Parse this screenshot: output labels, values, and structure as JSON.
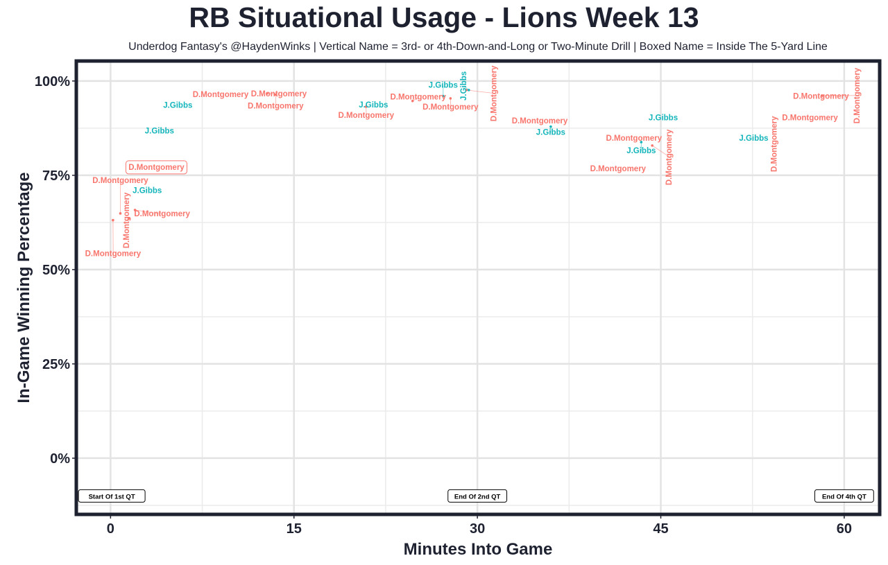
{
  "chart_data": {
    "type": "scatter",
    "title": "RB Situational Usage - Lions Week 13",
    "subtitle": "Underdog Fantasy's @HaydenWinks | Vertical Name = 3rd- or 4th-Down-and-Long or Two-Minute Drill | Boxed Name = Inside The 5-Yard Line",
    "xlabel": "Minutes Into Game",
    "ylabel": "In-Game Winning Percentage",
    "xlim": [
      -2.8,
      62.9
    ],
    "ylim": [
      -14.9,
      105.3
    ],
    "xticks": [
      0,
      15,
      30,
      45,
      60
    ],
    "xtick_labels": [
      "0",
      "15",
      "30",
      "45",
      "60"
    ],
    "yticks": [
      0,
      25,
      50,
      75,
      100
    ],
    "ytick_labels": [
      "0%",
      "25%",
      "50%",
      "75%",
      "100%"
    ],
    "grid": true,
    "colors": {
      "D.Montgomery": "#F8766D",
      "J.Gibbs": "#13B5BB"
    },
    "points": [
      {
        "name": "D.Montgomery",
        "x": 9.0,
        "y": 96.5
      },
      {
        "name": "D.Montgomery",
        "x": 12.8,
        "y": 96.7
      },
      {
        "name": "D.Montgomery",
        "x": 13.5,
        "y": 96.4
      },
      {
        "name": "J.Gibbs",
        "x": 5.5,
        "y": 93.6
      },
      {
        "name": "J.Gibbs",
        "x": 4.0,
        "y": 86.8
      },
      {
        "name": "D.Montgomery",
        "x": 3.75,
        "y": 77.2,
        "boxed": true
      },
      {
        "name": "J.Gibbs",
        "x": 3.0,
        "y": 71.0
      },
      {
        "name": "D.Montgomery",
        "x": 1.5,
        "y": 63.6,
        "vertical": true
      },
      {
        "name": "D.Montgomery",
        "x": 2.0,
        "y": 65.8
      },
      {
        "name": "D.Montgomery",
        "x": 0.8,
        "y": 64.9
      },
      {
        "name": "D.Montgomery",
        "x": 0.2,
        "y": 63.1
      },
      {
        "name": "J.Gibbs",
        "x": 21.5,
        "y": 93.7
      },
      {
        "name": "D.Montgomery",
        "x": 20.9,
        "y": 93.2
      },
      {
        "name": "D.Montgomery",
        "x": 24.7,
        "y": 94.7
      },
      {
        "name": "D.Montgomery",
        "x": 27.8,
        "y": 95.4
      },
      {
        "name": "J.Gibbs",
        "x": 27.2,
        "y": 96.0
      },
      {
        "name": "D.Montgomery",
        "x": 29.1,
        "y": 97.6,
        "vertical": true
      },
      {
        "name": "J.Gibbs",
        "x": 29.3,
        "y": 97.6,
        "vertical": true
      },
      {
        "name": "D.Montgomery",
        "x": 35.1,
        "y": 89.5
      },
      {
        "name": "J.Gibbs",
        "x": 36.0,
        "y": 87.9
      },
      {
        "name": "J.Gibbs",
        "x": 45.2,
        "y": 90.3
      },
      {
        "name": "D.Montgomery",
        "x": 42.8,
        "y": 84.9
      },
      {
        "name": "J.Gibbs",
        "x": 43.4,
        "y": 83.8
      },
      {
        "name": "D.Montgomery",
        "x": 44.3,
        "y": 82.9,
        "vertical": true
      },
      {
        "name": "D.Montgomery",
        "x": 41.5,
        "y": 76.8
      },
      {
        "name": "J.Gibbs",
        "x": 52.6,
        "y": 84.9
      },
      {
        "name": "D.Montgomery",
        "x": 53.9,
        "y": 83.3,
        "vertical": true
      },
      {
        "name": "D.Montgomery",
        "x": 58.1,
        "y": 96.0
      },
      {
        "name": "D.Montgomery",
        "x": 57.2,
        "y": 90.3
      },
      {
        "name": "D.Montgomery",
        "x": 58.2,
        "y": 96.1,
        "vertical": true
      }
    ],
    "annotations": [
      {
        "text": "Start Of 1st QT",
        "x": 0.1,
        "y": -10
      },
      {
        "text": "End Of 2nd QT",
        "x": 30,
        "y": -10
      },
      {
        "text": "End Of 4th QT",
        "x": 60,
        "y": -10
      }
    ]
  }
}
